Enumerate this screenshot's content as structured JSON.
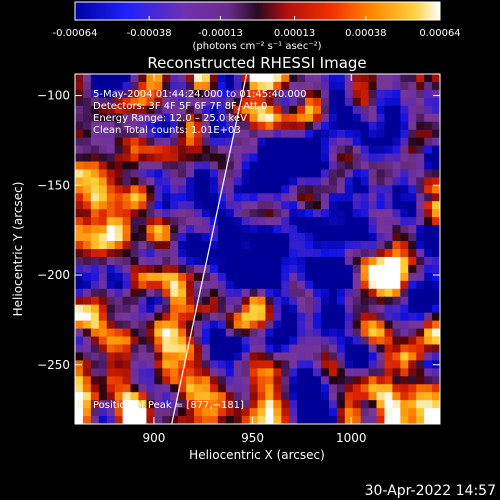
{
  "colorbar": {
    "tick_labels": [
      "-0.00064",
      "-0.00038",
      "-0.00013",
      "0.00013",
      "0.00038",
      "0.00064"
    ],
    "tick_values": [
      -0.00064,
      -0.00038,
      -0.00013,
      0.00013,
      0.00038,
      0.00064
    ],
    "range": [
      -0.00064,
      0.00064
    ],
    "unit_label": "(photons cm⁻² s⁻¹ asec⁻²)"
  },
  "chart_data": {
    "type": "heatmap",
    "title": "Reconstructed RHESSI Image",
    "xlabel": "Heliocentric X (arcsec)",
    "ylabel": "Heliocentric Y (arcsec)",
    "xlim": [
      860,
      1045
    ],
    "ylim": [
      -283,
      -88
    ],
    "x_ticks": [
      900,
      950,
      1000
    ],
    "x_tick_labels": [
      "900",
      "950",
      "1000"
    ],
    "y_ticks": [
      -100,
      -150,
      -200,
      -250
    ],
    "y_tick_labels": [
      "−100",
      "−150",
      "−200",
      "−250"
    ],
    "annotations": [
      "5-May-2004 01:44:24.000 to 01:45:40.000",
      "Detectors: 3F 4F 5F 6F 7F 8F, Att 0",
      "Energy Range: 12.0 – 25.0 keV",
      "Clean     Total counts: 1.01E+03"
    ],
    "peak_label": "Position of Peak = [877,−181]",
    "limb_line": [
      [
        909,
        -283
      ],
      [
        947,
        -88
      ]
    ],
    "grid": false
  },
  "timestamp": "30-Apr-2022 14:57",
  "colors": {
    "background": "#000000",
    "axes": "#ffffff",
    "colormap": [
      "#000096",
      "#0000ff",
      "#6b2ba0",
      "#7f3a9b",
      "#3b1b4a",
      "#a01010",
      "#e02000",
      "#ff8000",
      "#ffd030",
      "#ffffff"
    ]
  }
}
